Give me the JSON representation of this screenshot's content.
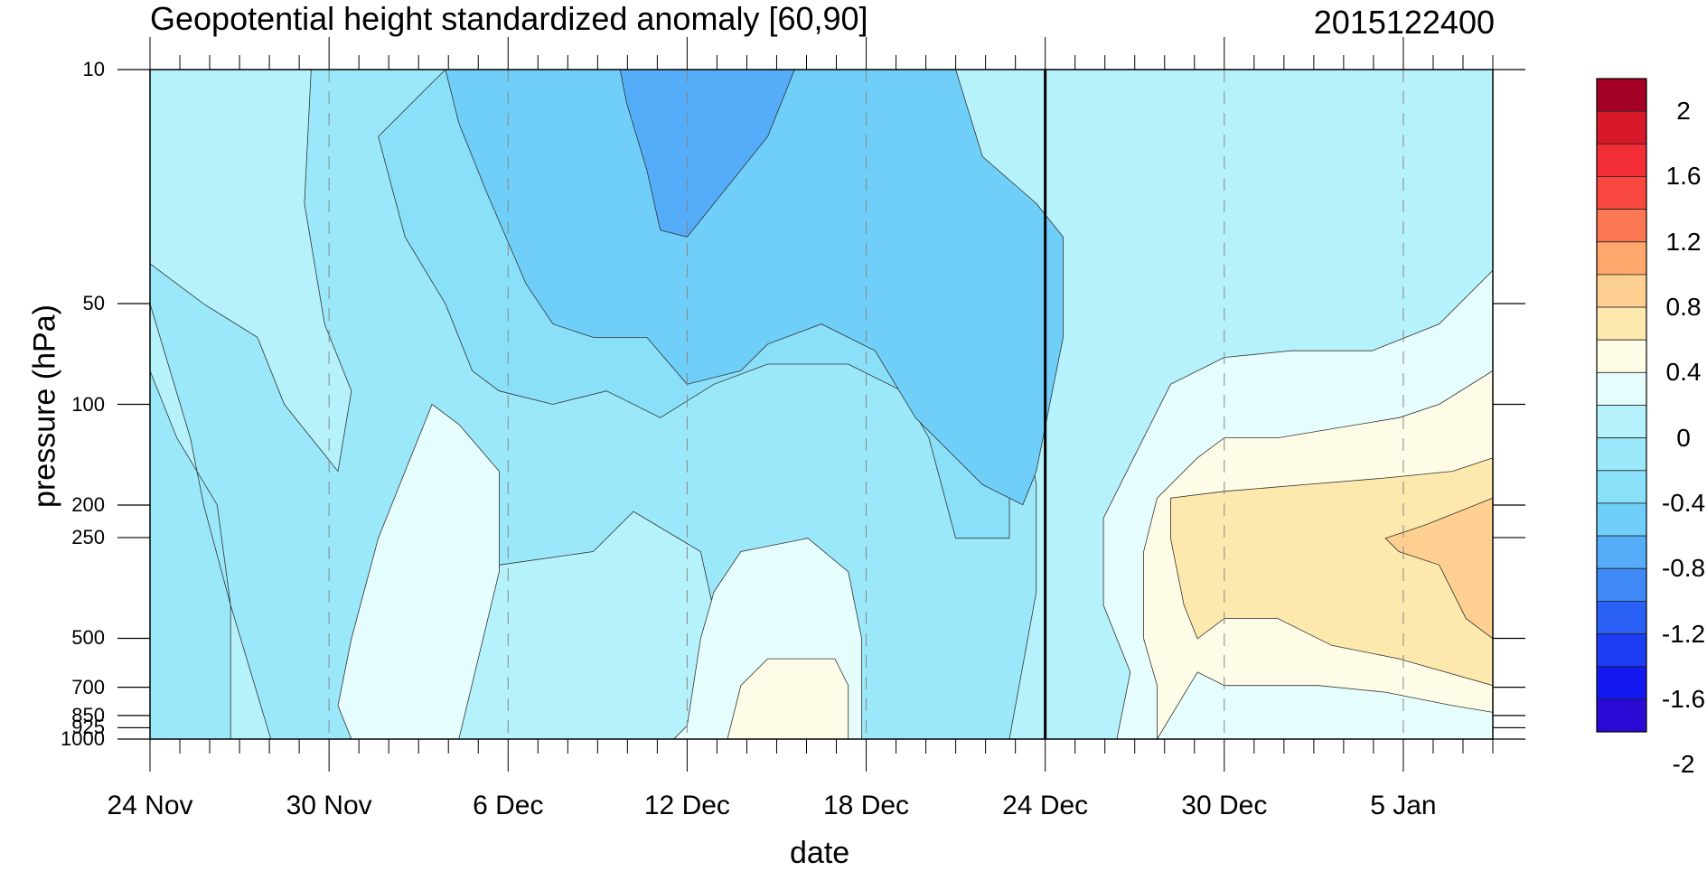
{
  "title_left": "Geopotential height standardized anomaly [60,90]",
  "title_right": "2015122400",
  "ylabel": "pressure (hPa)",
  "xlabel": "date",
  "y_ticks": [
    "10",
    "50",
    "100",
    "200",
    "250",
    "500",
    "700",
    "850",
    "925",
    "1000"
  ],
  "x_ticks": [
    "24 Nov",
    "30 Nov",
    "6 Dec",
    "12 Dec",
    "18 Dec",
    "24 Dec",
    "30 Dec",
    "5 Jan"
  ],
  "colorbar": {
    "labels": [
      "2",
      "1.6",
      "1.2",
      "0.8",
      "0.4",
      "0",
      "-0.4",
      "-0.8",
      "-1.2",
      "-1.6",
      "-2"
    ],
    "colors": [
      "#a50026",
      "#d7192a",
      "#f22d35",
      "#f9483f",
      "#fc7753",
      "#fda76c",
      "#fdcf90",
      "#fde9ad",
      "#fefbe6",
      "#e6fdfd",
      "#b6f2fb",
      "#9ae8fa",
      "#8ae0f9",
      "#6fcff8",
      "#55acf9",
      "#3f8af7",
      "#2a60f5",
      "#1c3df3",
      "#1418f0",
      "#2a0ad4"
    ]
  },
  "chart_data": {
    "type": "heatmap",
    "title": "Geopotential height standardized anomaly [60,90]",
    "xlabel": "date",
    "ylabel": "pressure (hPa)",
    "x_range": [
      "24 Nov 2015",
      "8 Jan 2016"
    ],
    "y_range_hPa": [
      1000,
      10
    ],
    "y_scale": "log",
    "colorbar_range": [
      -2,
      2
    ],
    "vertical_marker": "24 Dec",
    "grid": "dashed vertical lines at date ticks",
    "legend_placement": "right"
  },
  "regions": [
    {
      "color": "#b6f2fb",
      "pts": [
        [
          0,
          0
        ],
        [
          1,
          0
        ],
        [
          1,
          1
        ],
        [
          0,
          1
        ]
      ]
    },
    {
      "color": "#9ae8fa",
      "pts": [
        [
          0.12,
          0
        ],
        [
          0.55,
          0
        ],
        [
          0.6,
          0.05
        ],
        [
          0.62,
          0.3
        ],
        [
          0.64,
          0.4
        ],
        [
          0.66,
          0.62
        ],
        [
          0.66,
          0.78
        ],
        [
          0.64,
          1
        ],
        [
          0.5,
          1
        ],
        [
          0.44,
          0.98
        ],
        [
          0.43,
          0.9
        ],
        [
          0.41,
          0.72
        ],
        [
          0.36,
          0.66
        ],
        [
          0.33,
          0.72
        ],
        [
          0.26,
          0.74
        ],
        [
          0.2,
          0.7
        ],
        [
          0.18,
          0.74
        ],
        [
          0.17,
          1
        ],
        [
          0.09,
          1
        ],
        [
          0.06,
          0.8
        ],
        [
          0.04,
          0.65
        ],
        [
          0.03,
          0.55
        ],
        [
          0.0,
          0.35
        ],
        [
          0.0,
          0.45
        ],
        [
          0.02,
          0.55
        ],
        [
          0.05,
          0.65
        ],
        [
          0.06,
          0.8
        ],
        [
          0.06,
          1
        ],
        [
          0.0,
          1
        ],
        [
          0.0,
          0.3
        ],
        [
          0.0,
          0.29
        ],
        [
          0.04,
          0.35
        ],
        [
          0.08,
          0.4
        ],
        [
          0.1,
          0.5
        ],
        [
          0.12,
          0.55
        ],
        [
          0.14,
          0.6
        ],
        [
          0.15,
          0.48
        ],
        [
          0.13,
          0.38
        ],
        [
          0.115,
          0.2
        ]
      ]
    },
    {
      "color": "#8ae0f9",
      "pts": [
        [
          0.22,
          0
        ],
        [
          0.5,
          0
        ],
        [
          0.53,
          0.05
        ],
        [
          0.55,
          0.18
        ],
        [
          0.57,
          0.26
        ],
        [
          0.6,
          0.32
        ],
        [
          0.62,
          0.42
        ],
        [
          0.64,
          0.55
        ],
        [
          0.64,
          0.7
        ],
        [
          0.6,
          0.7
        ],
        [
          0.58,
          0.55
        ],
        [
          0.56,
          0.48
        ],
        [
          0.52,
          0.44
        ],
        [
          0.46,
          0.44
        ],
        [
          0.42,
          0.47
        ],
        [
          0.38,
          0.52
        ],
        [
          0.34,
          0.48
        ],
        [
          0.3,
          0.5
        ],
        [
          0.26,
          0.48
        ],
        [
          0.24,
          0.45
        ],
        [
          0.22,
          0.35
        ],
        [
          0.19,
          0.25
        ],
        [
          0.17,
          0.1
        ]
      ]
    },
    {
      "color": "#6fcff8",
      "pts": [
        [
          0.22,
          0
        ],
        [
          0.6,
          0
        ],
        [
          0.62,
          0.13
        ],
        [
          0.66,
          0.2
        ],
        [
          0.68,
          0.25
        ],
        [
          0.68,
          0.4
        ],
        [
          0.66,
          0.6
        ],
        [
          0.65,
          0.65
        ],
        [
          0.62,
          0.62
        ],
        [
          0.57,
          0.52
        ],
        [
          0.54,
          0.42
        ],
        [
          0.5,
          0.38
        ],
        [
          0.46,
          0.41
        ],
        [
          0.44,
          0.45
        ],
        [
          0.4,
          0.47
        ],
        [
          0.37,
          0.4
        ],
        [
          0.33,
          0.4
        ],
        [
          0.3,
          0.38
        ],
        [
          0.28,
          0.32
        ],
        [
          0.25,
          0.18
        ],
        [
          0.23,
          0.08
        ]
      ]
    },
    {
      "color": "#55acf9",
      "pts": [
        [
          0.35,
          0
        ],
        [
          0.48,
          0
        ],
        [
          0.46,
          0.1
        ],
        [
          0.42,
          0.2
        ],
        [
          0.4,
          0.25
        ],
        [
          0.38,
          0.24
        ],
        [
          0.37,
          0.15
        ],
        [
          0.355,
          0.05
        ]
      ]
    },
    {
      "color": "#e6fdfd",
      "pts": [
        [
          0.15,
          0.85
        ],
        [
          0.17,
          0.7
        ],
        [
          0.19,
          0.6
        ],
        [
          0.21,
          0.5
        ],
        [
          0.23,
          0.53
        ],
        [
          0.26,
          0.6
        ],
        [
          0.26,
          0.75
        ],
        [
          0.23,
          1
        ],
        [
          0.15,
          1
        ],
        [
          0.14,
          0.95
        ]
      ]
    },
    {
      "color": "#e6fdfd",
      "pts": [
        [
          0.4,
          0.98
        ],
        [
          0.41,
          0.85
        ],
        [
          0.42,
          0.78
        ],
        [
          0.44,
          0.72
        ],
        [
          0.49,
          0.7
        ],
        [
          0.52,
          0.75
        ],
        [
          0.53,
          0.85
        ],
        [
          0.53,
          1
        ],
        [
          0.39,
          1
        ]
      ]
    },
    {
      "color": "#fefbe6",
      "pts": [
        [
          0.43,
          1
        ],
        [
          0.44,
          0.92
        ],
        [
          0.46,
          0.88
        ],
        [
          0.51,
          0.88
        ],
        [
          0.52,
          0.92
        ],
        [
          0.52,
          1
        ]
      ]
    },
    {
      "color": "#e6fdfd",
      "pts": [
        [
          0.72,
          1
        ],
        [
          0.73,
          0.9
        ],
        [
          0.71,
          0.8
        ],
        [
          0.71,
          0.67
        ],
        [
          0.74,
          0.55
        ],
        [
          0.76,
          0.47
        ],
        [
          0.8,
          0.43
        ],
        [
          0.85,
          0.42
        ],
        [
          0.91,
          0.42
        ],
        [
          0.96,
          0.38
        ],
        [
          1.0,
          0.3
        ],
        [
          1.0,
          1
        ]
      ]
    },
    {
      "color": "#fefbe6",
      "pts": [
        [
          0.75,
          1
        ],
        [
          0.75,
          0.92
        ],
        [
          0.74,
          0.85
        ],
        [
          0.74,
          0.72
        ],
        [
          0.75,
          0.64
        ],
        [
          0.78,
          0.58
        ],
        [
          0.8,
          0.55
        ],
        [
          0.84,
          0.55
        ],
        [
          0.93,
          0.52
        ],
        [
          0.96,
          0.5
        ],
        [
          1.0,
          0.45
        ],
        [
          1.0,
          0.96
        ],
        [
          0.97,
          0.95
        ],
        [
          0.92,
          0.93
        ],
        [
          0.87,
          0.92
        ],
        [
          0.8,
          0.92
        ],
        [
          0.78,
          0.9
        ]
      ]
    },
    {
      "color": "#fde9ad",
      "pts": [
        [
          0.76,
          0.7
        ],
        [
          0.76,
          0.64
        ],
        [
          0.8,
          0.63
        ],
        [
          0.86,
          0.62
        ],
        [
          0.92,
          0.61
        ],
        [
          0.97,
          0.6
        ],
        [
          1.0,
          0.58
        ],
        [
          1.0,
          0.92
        ],
        [
          0.93,
          0.88
        ],
        [
          0.88,
          0.86
        ],
        [
          0.84,
          0.82
        ],
        [
          0.8,
          0.82
        ],
        [
          0.78,
          0.85
        ],
        [
          0.77,
          0.8
        ]
      ]
    },
    {
      "color": "#fdcf90",
      "pts": [
        [
          0.92,
          0.7
        ],
        [
          0.95,
          0.68
        ],
        [
          1.0,
          0.64
        ],
        [
          1.0,
          0.85
        ],
        [
          0.98,
          0.82
        ],
        [
          0.96,
          0.74
        ],
        [
          0.93,
          0.72
        ]
      ]
    }
  ]
}
